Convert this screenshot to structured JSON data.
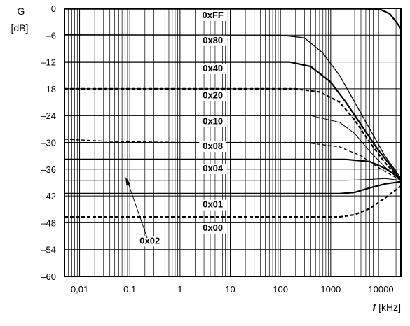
{
  "chart_data": {
    "type": "line",
    "y_axis_title": "G",
    "y_axis_unit": "[dB]",
    "x_axis_title_bold": "f",
    "x_axis_unit": "[kHz]",
    "x_scale": "log",
    "xlim": [
      0.005,
      25000
    ],
    "ylim": [
      -60,
      0
    ],
    "grid": true,
    "y_ticks": [
      {
        "v": 0,
        "label": "0"
      },
      {
        "v": -6,
        "label": "–6"
      },
      {
        "v": -12,
        "label": "–12"
      },
      {
        "v": -18,
        "label": "–18"
      },
      {
        "v": -24,
        "label": "–24"
      },
      {
        "v": -30,
        "label": "–30"
      },
      {
        "v": -36,
        "label": "–36"
      },
      {
        "v": -42,
        "label": "–42"
      },
      {
        "v": -48,
        "label": "–48"
      },
      {
        "v": -54,
        "label": "–54"
      },
      {
        "v": -60,
        "label": "–60"
      }
    ],
    "x_ticks": [
      {
        "v": 0.01,
        "label": "0,01"
      },
      {
        "v": 0.1,
        "label": "0,1"
      },
      {
        "v": 1,
        "label": "1"
      },
      {
        "v": 10,
        "label": "10"
      },
      {
        "v": 100,
        "label": "100"
      },
      {
        "v": 1000,
        "label": "1000"
      },
      {
        "v": 10000,
        "label": "10000"
      }
    ],
    "series": [
      {
        "name": "0xFF",
        "style": "solid",
        "width": 2.2,
        "label_x": 4.5,
        "label_y": -2.2,
        "points": [
          [
            0.005,
            -0.1
          ],
          [
            5000,
            -0.1
          ],
          [
            10000,
            -0.3
          ],
          [
            15000,
            -1.2
          ],
          [
            20000,
            -3
          ],
          [
            25000,
            -4.5
          ]
        ]
      },
      {
        "name": "0x80",
        "style": "solid",
        "width": 1.3,
        "label_x": 4.5,
        "label_y": -7.8,
        "points": [
          [
            0.005,
            -5.9
          ],
          [
            100,
            -6.0
          ],
          [
            300,
            -6.6
          ],
          [
            700,
            -10
          ],
          [
            1500,
            -15
          ],
          [
            3000,
            -21
          ],
          [
            6000,
            -27
          ],
          [
            12000,
            -33
          ],
          [
            25000,
            -38
          ]
        ]
      },
      {
        "name": "0x40",
        "style": "solid",
        "width": 2.2,
        "label_x": 4.5,
        "label_y": -14.1,
        "points": [
          [
            0.005,
            -12
          ],
          [
            150,
            -12
          ],
          [
            400,
            -13
          ],
          [
            1000,
            -16.5
          ],
          [
            2000,
            -21
          ],
          [
            4000,
            -26
          ],
          [
            8000,
            -31
          ],
          [
            15000,
            -35
          ],
          [
            25000,
            -38.5
          ]
        ]
      },
      {
        "name": "0x20",
        "style": "dashed",
        "width": 2.2,
        "label_x": 4.5,
        "label_y": -20.1,
        "points": [
          [
            0.005,
            -18
          ],
          [
            200,
            -18
          ],
          [
            600,
            -18.7
          ],
          [
            1500,
            -21
          ],
          [
            3000,
            -25
          ],
          [
            6000,
            -30
          ],
          [
            12000,
            -34.5
          ],
          [
            25000,
            -38.5
          ]
        ]
      },
      {
        "name": "0x10",
        "style": "solid",
        "width": 1.0,
        "label_x": 4.5,
        "label_y": -25.9,
        "points": [
          [
            0.005,
            -24
          ],
          [
            400,
            -24
          ],
          [
            1500,
            -25.5
          ],
          [
            3000,
            -28
          ],
          [
            6000,
            -32
          ],
          [
            12000,
            -35.5
          ],
          [
            25000,
            -38.5
          ]
        ]
      },
      {
        "name": "0x08",
        "style": "dashed",
        "width": 1.3,
        "label_x": 4.5,
        "label_y": -31.5,
        "points": [
          [
            0.005,
            -29.3
          ],
          [
            0.05,
            -29.8
          ],
          [
            1,
            -30
          ],
          [
            300,
            -30
          ],
          [
            1500,
            -31
          ],
          [
            4000,
            -33
          ],
          [
            10000,
            -36
          ],
          [
            25000,
            -38.5
          ]
        ]
      },
      {
        "name": "0x04",
        "style": "solid",
        "width": 2.2,
        "label_x": 4.5,
        "label_y": -36.5,
        "points": [
          [
            0.005,
            -33.8
          ],
          [
            2000,
            -33.8
          ],
          [
            6000,
            -34.3
          ],
          [
            12000,
            -35.8
          ],
          [
            25000,
            -38.2
          ]
        ]
      },
      {
        "name": "0x02",
        "style": "solid",
        "width": 1.0,
        "label_x": 0.25,
        "label_y": -52.7,
        "points": [
          [
            0.005,
            -38.5
          ],
          [
            2000,
            -38.5
          ],
          [
            6000,
            -38.3
          ],
          [
            12000,
            -38.1
          ],
          [
            25000,
            -38.5
          ]
        ]
      },
      {
        "name": "0x01",
        "style": "solid",
        "width": 2.2,
        "label_x": 4.5,
        "label_y": -44.6,
        "points": [
          [
            0.005,
            -41.5
          ],
          [
            1500,
            -41.5
          ],
          [
            3000,
            -41.2
          ],
          [
            6000,
            -40.2
          ],
          [
            12000,
            -39.3
          ],
          [
            25000,
            -38.8
          ]
        ]
      },
      {
        "name": "0x00",
        "style": "dashed",
        "width": 2.2,
        "label_x": 4.5,
        "label_y": -49.8,
        "points": [
          [
            0.005,
            -46.7
          ],
          [
            1500,
            -46.7
          ],
          [
            3000,
            -46.2
          ],
          [
            6000,
            -44.8
          ],
          [
            12000,
            -42.5
          ],
          [
            25000,
            -39.8
          ]
        ]
      }
    ]
  }
}
